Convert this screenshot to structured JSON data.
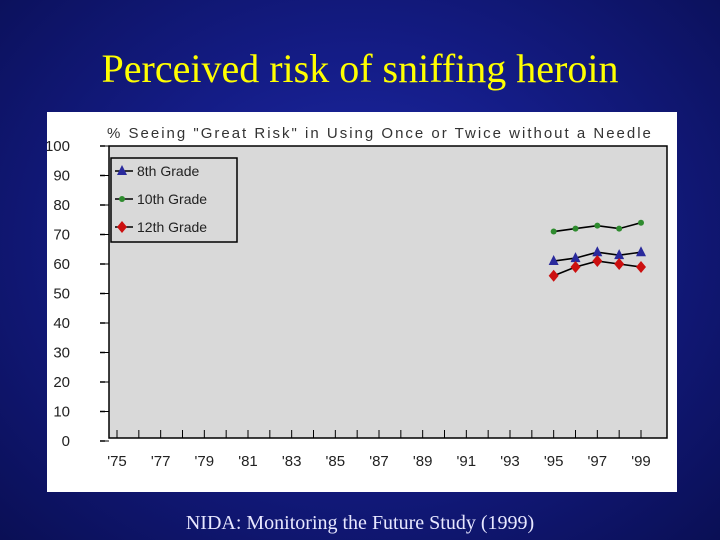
{
  "slide": {
    "title": "Perceived risk of sniffing heroin",
    "footer": "NIDA: Monitoring the Future Study (1999)"
  },
  "colors": {
    "background": "#141c86",
    "title": "#ffff00",
    "plot_area": "#d9d9d9",
    "series": [
      "#2a2a9c",
      "#2e8b2e",
      "#cc1010"
    ]
  },
  "chart_data": {
    "type": "line",
    "title": "% Seeing \"Great Risk\" in Using Once or Twice without a Needle",
    "xlabel": "",
    "ylabel": "",
    "x_ticks": [
      "'75",
      "'77",
      "'79",
      "'81",
      "'83",
      "'85",
      "'87",
      "'89",
      "'91",
      "'93",
      "'95",
      "'97",
      "'99"
    ],
    "x_range": [
      1975,
      1999
    ],
    "ylim": [
      0,
      100
    ],
    "y_ticks": [
      0,
      10,
      20,
      30,
      40,
      50,
      60,
      70,
      80,
      90,
      100
    ],
    "x": [
      1995,
      1996,
      1997,
      1998,
      1999
    ],
    "series": [
      {
        "name": "8th Grade",
        "values": [
          61,
          62,
          64,
          63,
          64
        ]
      },
      {
        "name": "10th Grade",
        "values": [
          71,
          72,
          73,
          72,
          74
        ]
      },
      {
        "name": "12th Grade",
        "values": [
          56,
          59,
          61,
          60,
          59
        ]
      }
    ],
    "legend_position": "top-left",
    "grid": false
  }
}
